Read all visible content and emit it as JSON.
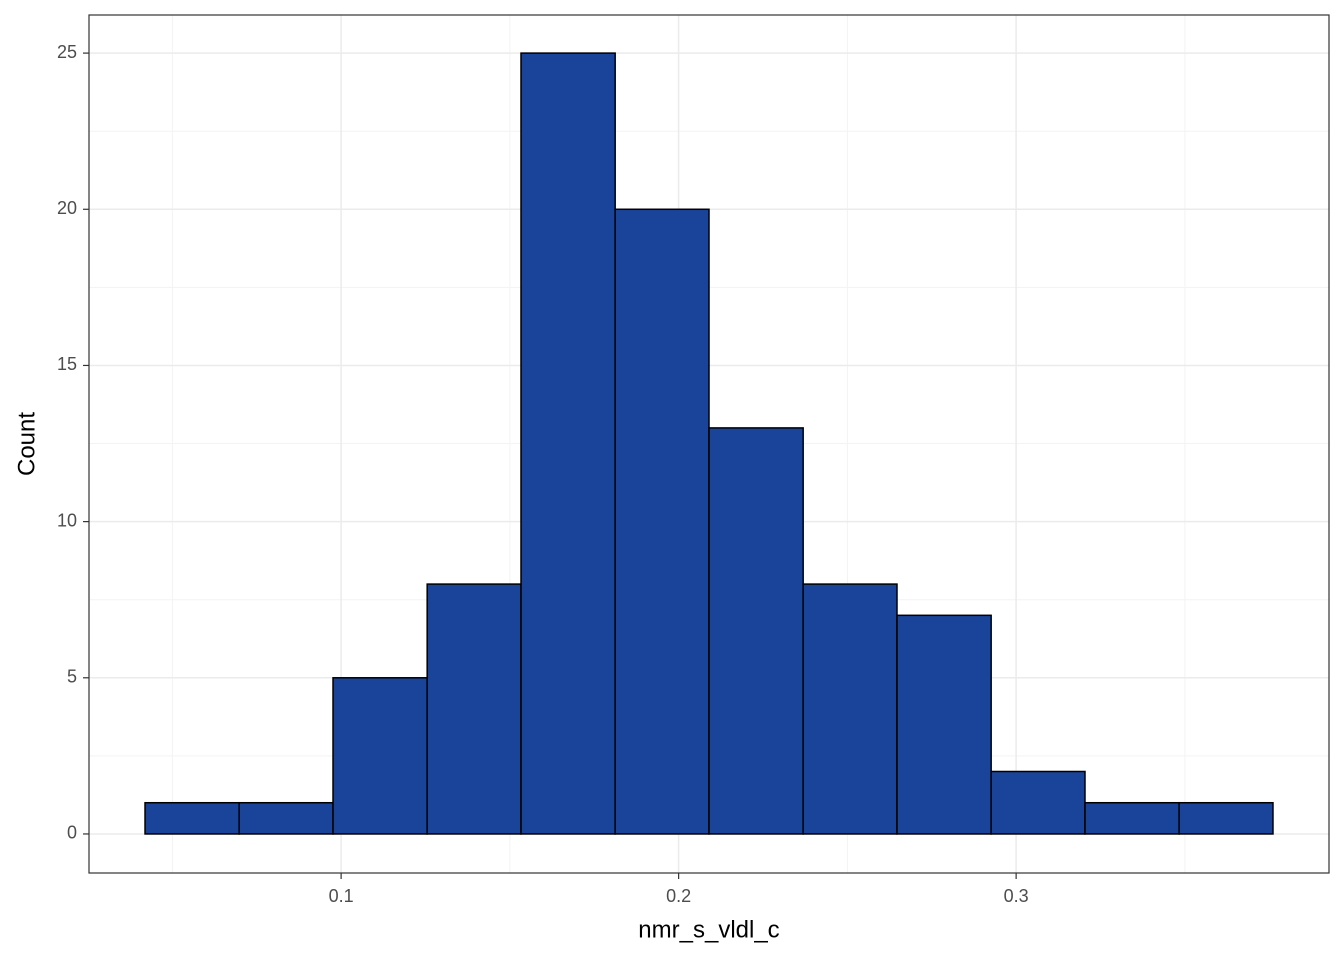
{
  "chart_data": {
    "type": "histogram",
    "x_label": "nmr_s_vldl_c",
    "y_label": "Count",
    "bins": [
      0.0419,
      0.0698,
      0.0976,
      0.1255,
      0.1533,
      0.1812,
      0.209,
      0.2369,
      0.2647,
      0.2926,
      0.3204,
      0.3483,
      0.3761
    ],
    "values": [
      1,
      1,
      5,
      8,
      25,
      20,
      13,
      8,
      7,
      2,
      1,
      1
    ],
    "color": "#1a4499",
    "edgecolor": "#000000",
    "xlim": [
      0.0253,
      0.3927
    ],
    "ylim": [
      -1.25,
      26.22
    ],
    "xticks": [
      0.1,
      0.2,
      0.3
    ],
    "yticks": [
      0,
      5,
      10,
      15,
      20,
      25
    ],
    "grid": true,
    "minor_grid": true
  }
}
